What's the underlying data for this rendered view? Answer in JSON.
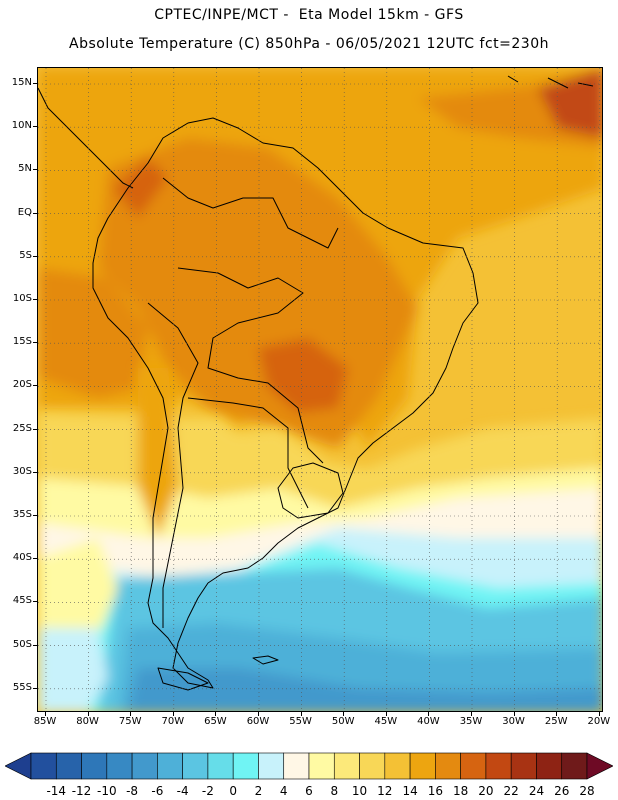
{
  "header": {
    "line1": "CPTEC/INPE/MCT -  Eta Model 15km - GFS",
    "line2": "Absolute Temperature (C) 850hPa - 06/05/2021 12UTC fct=230h"
  },
  "map": {
    "lat_labels": [
      "15N",
      "10N",
      "5N",
      "EQ",
      "5S",
      "10S",
      "15S",
      "20S",
      "25S",
      "30S",
      "35S",
      "40S",
      "45S",
      "50S",
      "55S"
    ],
    "lon_labels": [
      "85W",
      "80W",
      "75W",
      "70W",
      "65W",
      "60W",
      "55W",
      "50W",
      "45W",
      "40W",
      "35W",
      "30W",
      "25W",
      "20W"
    ],
    "gridlines": true
  },
  "colorbar": {
    "labels": [
      "-14",
      "-12",
      "-10",
      "-8",
      "-6",
      "-4",
      "-2",
      "0",
      "2",
      "4",
      "6",
      "8",
      "10",
      "12",
      "14",
      "16",
      "18",
      "20",
      "22",
      "24",
      "26",
      "28"
    ],
    "colors": [
      "#1e3f8f",
      "#22509e",
      "#2763aa",
      "#2e77b8",
      "#3789c3",
      "#4299cc",
      "#4eb0d8",
      "#5bc5e2",
      "#66dde9",
      "#70f4f4",
      "#c8f2fb",
      "#fff7e6",
      "#fffaa3",
      "#fce97a",
      "#f8d757",
      "#f4c135",
      "#eda510",
      "#e48a10",
      "#d66411",
      "#c24812",
      "#a83313",
      "#8e2314",
      "#6f1a1a",
      "#6e0a25"
    ]
  }
}
